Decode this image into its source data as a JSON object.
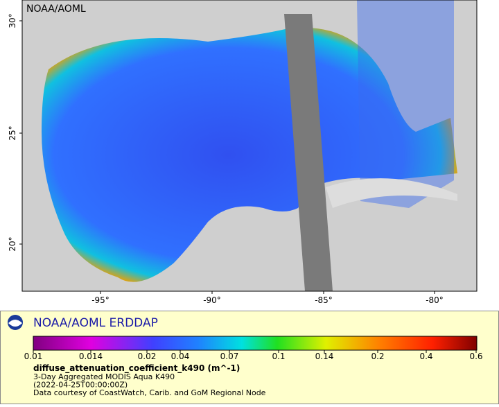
{
  "map": {
    "label": "NOAA/AOML",
    "lat_labels": [
      "30°",
      "25°",
      "20°"
    ],
    "lon_labels": [
      "-95°",
      "-90°",
      "-85°",
      "-80°"
    ]
  },
  "legend": {
    "title": "NOAA/AOML ERDDAP",
    "scale_labels": [
      "0.01",
      "0.014",
      "0.02",
      "0.04",
      "0.07",
      "0.1",
      "0.14",
      "0.2",
      "0.4",
      "0.6"
    ],
    "variable": "diffuse_attenuation_coefficient_k490 (m^-1)",
    "lines": [
      "3-Day Aggregated MODIS Aqua K490",
      "(2022-04-25T00:00:00Z)",
      "Data courtesy of CoastWatch, Carib. and GoM Regional Node"
    ]
  }
}
